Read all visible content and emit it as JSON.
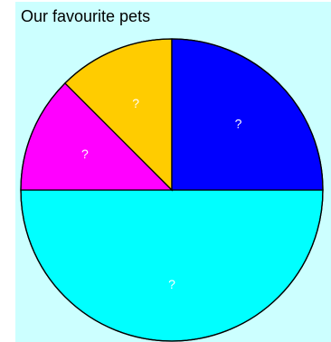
{
  "chart_data": {
    "type": "pie",
    "title": "Our favourite pets",
    "slices": [
      {
        "label": "?",
        "value": 50,
        "color": "#00ffff"
      },
      {
        "label": "?",
        "value": 12.5,
        "color": "#ff00ff"
      },
      {
        "label": "?",
        "value": 12.5,
        "color": "#ffcc00"
      },
      {
        "label": "?",
        "value": 25,
        "color": "#0000ff"
      }
    ],
    "start_angle_deg": 0,
    "direction": "clockwise",
    "legend": "none",
    "outline_color": "#000000",
    "background_color": "#ccffff"
  }
}
